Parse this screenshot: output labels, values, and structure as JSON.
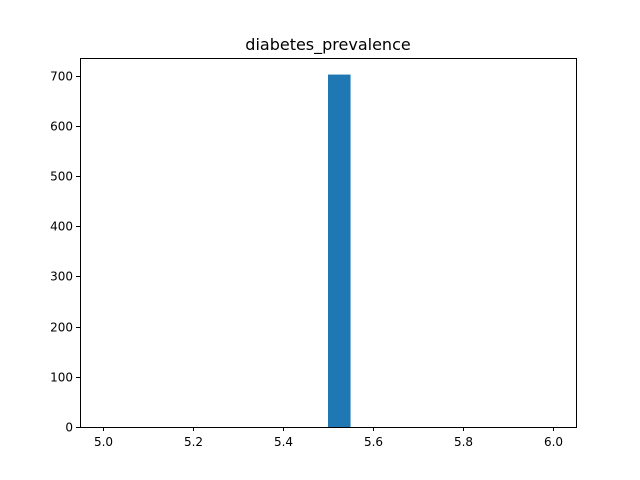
{
  "chart_data": {
    "type": "bar",
    "title": "diabetes_prevalence",
    "xlabel": "",
    "ylabel": "",
    "xlim": [
      4.95,
      6.05
    ],
    "ylim": [
      0,
      735
    ],
    "x_ticks": [
      5.0,
      5.2,
      5.4,
      5.6,
      5.8,
      6.0
    ],
    "x_tick_labels": [
      "5.0",
      "5.2",
      "5.4",
      "5.6",
      "5.8",
      "6.0"
    ],
    "y_ticks": [
      0,
      100,
      200,
      300,
      400,
      500,
      600,
      700
    ],
    "y_tick_labels": [
      "0",
      "100",
      "200",
      "300",
      "400",
      "500",
      "600",
      "700"
    ],
    "bars": [
      {
        "x_start": 5.5,
        "x_end": 5.55,
        "value": 702
      }
    ],
    "bar_color": "#1f77b4",
    "grid": false,
    "legend": "none"
  }
}
